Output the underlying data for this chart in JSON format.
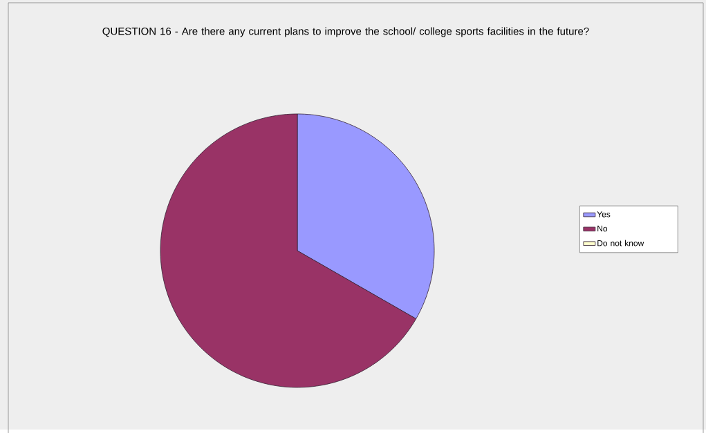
{
  "chart_data": {
    "type": "pie",
    "title": "QUESTION 16 - Are there any current plans to improve the school/ college sports facilities in the future?",
    "categories": [
      "Yes",
      "No",
      "Do not know"
    ],
    "values": [
      33.3,
      66.7,
      0
    ],
    "colors": [
      "#9999ff",
      "#993366",
      "#ffffcc"
    ],
    "legend": "right"
  }
}
